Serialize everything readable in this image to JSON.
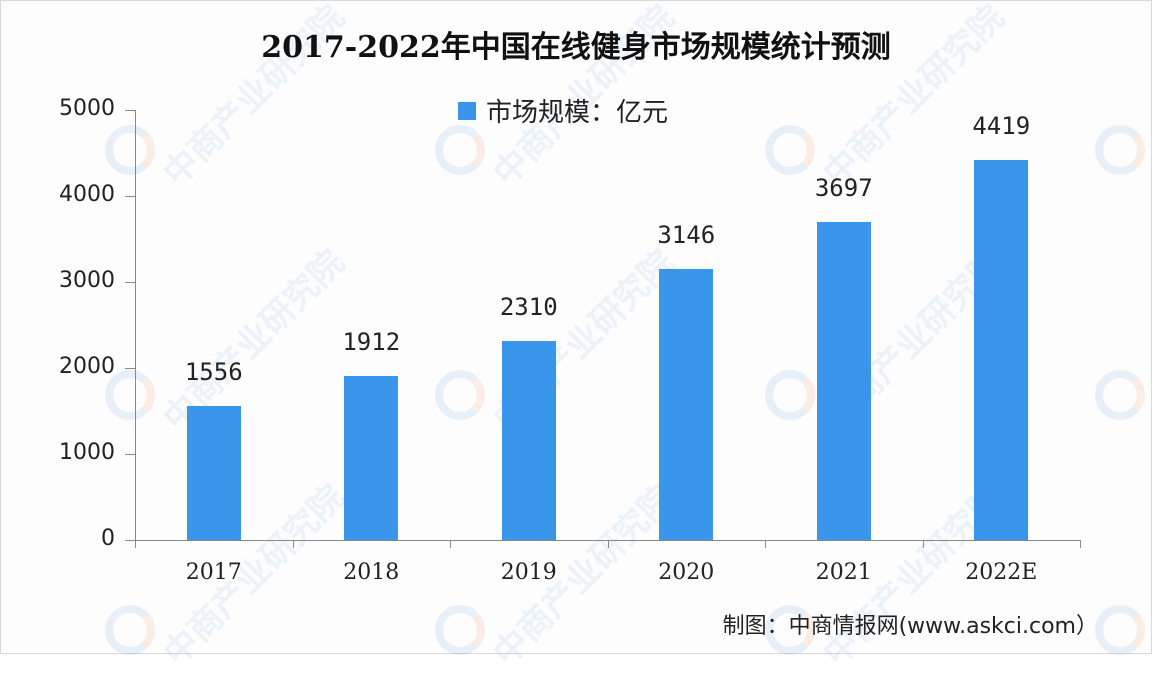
{
  "title": "2017-2022年中国在线健身市场规模统计预测",
  "legend": {
    "label": "市场规模：亿元",
    "color": "#3a96ea"
  },
  "source": "制图：中商情报网(www.askci.com）",
  "watermark": "中商产业研究院",
  "y_ticks": [
    "5000",
    "4000",
    "3000",
    "2000",
    "1000",
    "0"
  ],
  "value_labels": [
    "1556",
    "1912",
    "2310",
    "3146",
    "3697",
    "4419"
  ],
  "x_labels": [
    "2017",
    "2018",
    "2019",
    "2020",
    "2021",
    "2022E"
  ],
  "chart_data": {
    "type": "bar",
    "title": "2017-2022年中国在线健身市场规模统计预测",
    "xlabel": "",
    "ylabel": "",
    "categories": [
      "2017",
      "2018",
      "2019",
      "2020",
      "2021",
      "2022E"
    ],
    "series": [
      {
        "name": "市场规模：亿元",
        "values": [
          1556,
          1912,
          2310,
          3146,
          3697,
          4419
        ],
        "color": "#3a96ea"
      }
    ],
    "ylim": [
      0,
      5000
    ],
    "yticks": [
      0,
      1000,
      2000,
      3000,
      4000,
      5000
    ],
    "grid": false,
    "legend_position": "top",
    "data_labels": true,
    "annotations": [
      "制图：中商情报网(www.askci.com）"
    ]
  }
}
